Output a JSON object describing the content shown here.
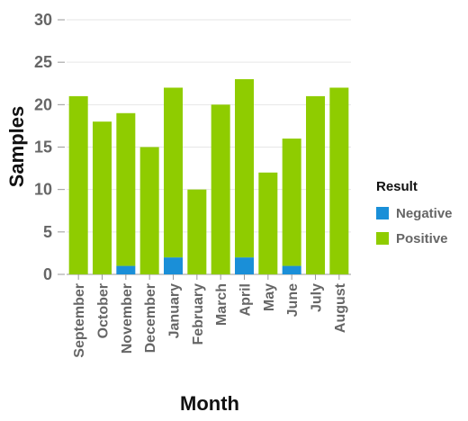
{
  "chart_data": {
    "type": "bar",
    "stacked": true,
    "title": "",
    "xlabel": "Month",
    "ylabel": "Samples",
    "ylim": [
      0,
      30
    ],
    "yticks": [
      0,
      5,
      10,
      15,
      20,
      25,
      30
    ],
    "grid": true,
    "legend_position": "right",
    "legend_title": "Result",
    "categories": [
      "September",
      "October",
      "November",
      "December",
      "January",
      "February",
      "March",
      "April",
      "May",
      "June",
      "July",
      "August"
    ],
    "series": [
      {
        "name": "Negative",
        "color": "#1a8fd8",
        "values": [
          0,
          0,
          1,
          0,
          2,
          0,
          0,
          2,
          0,
          1,
          0,
          0
        ]
      },
      {
        "name": "Positive",
        "color": "#8fcc00",
        "values": [
          21,
          18,
          18,
          15,
          20,
          10,
          20,
          21,
          12,
          15,
          21,
          22
        ]
      }
    ]
  }
}
